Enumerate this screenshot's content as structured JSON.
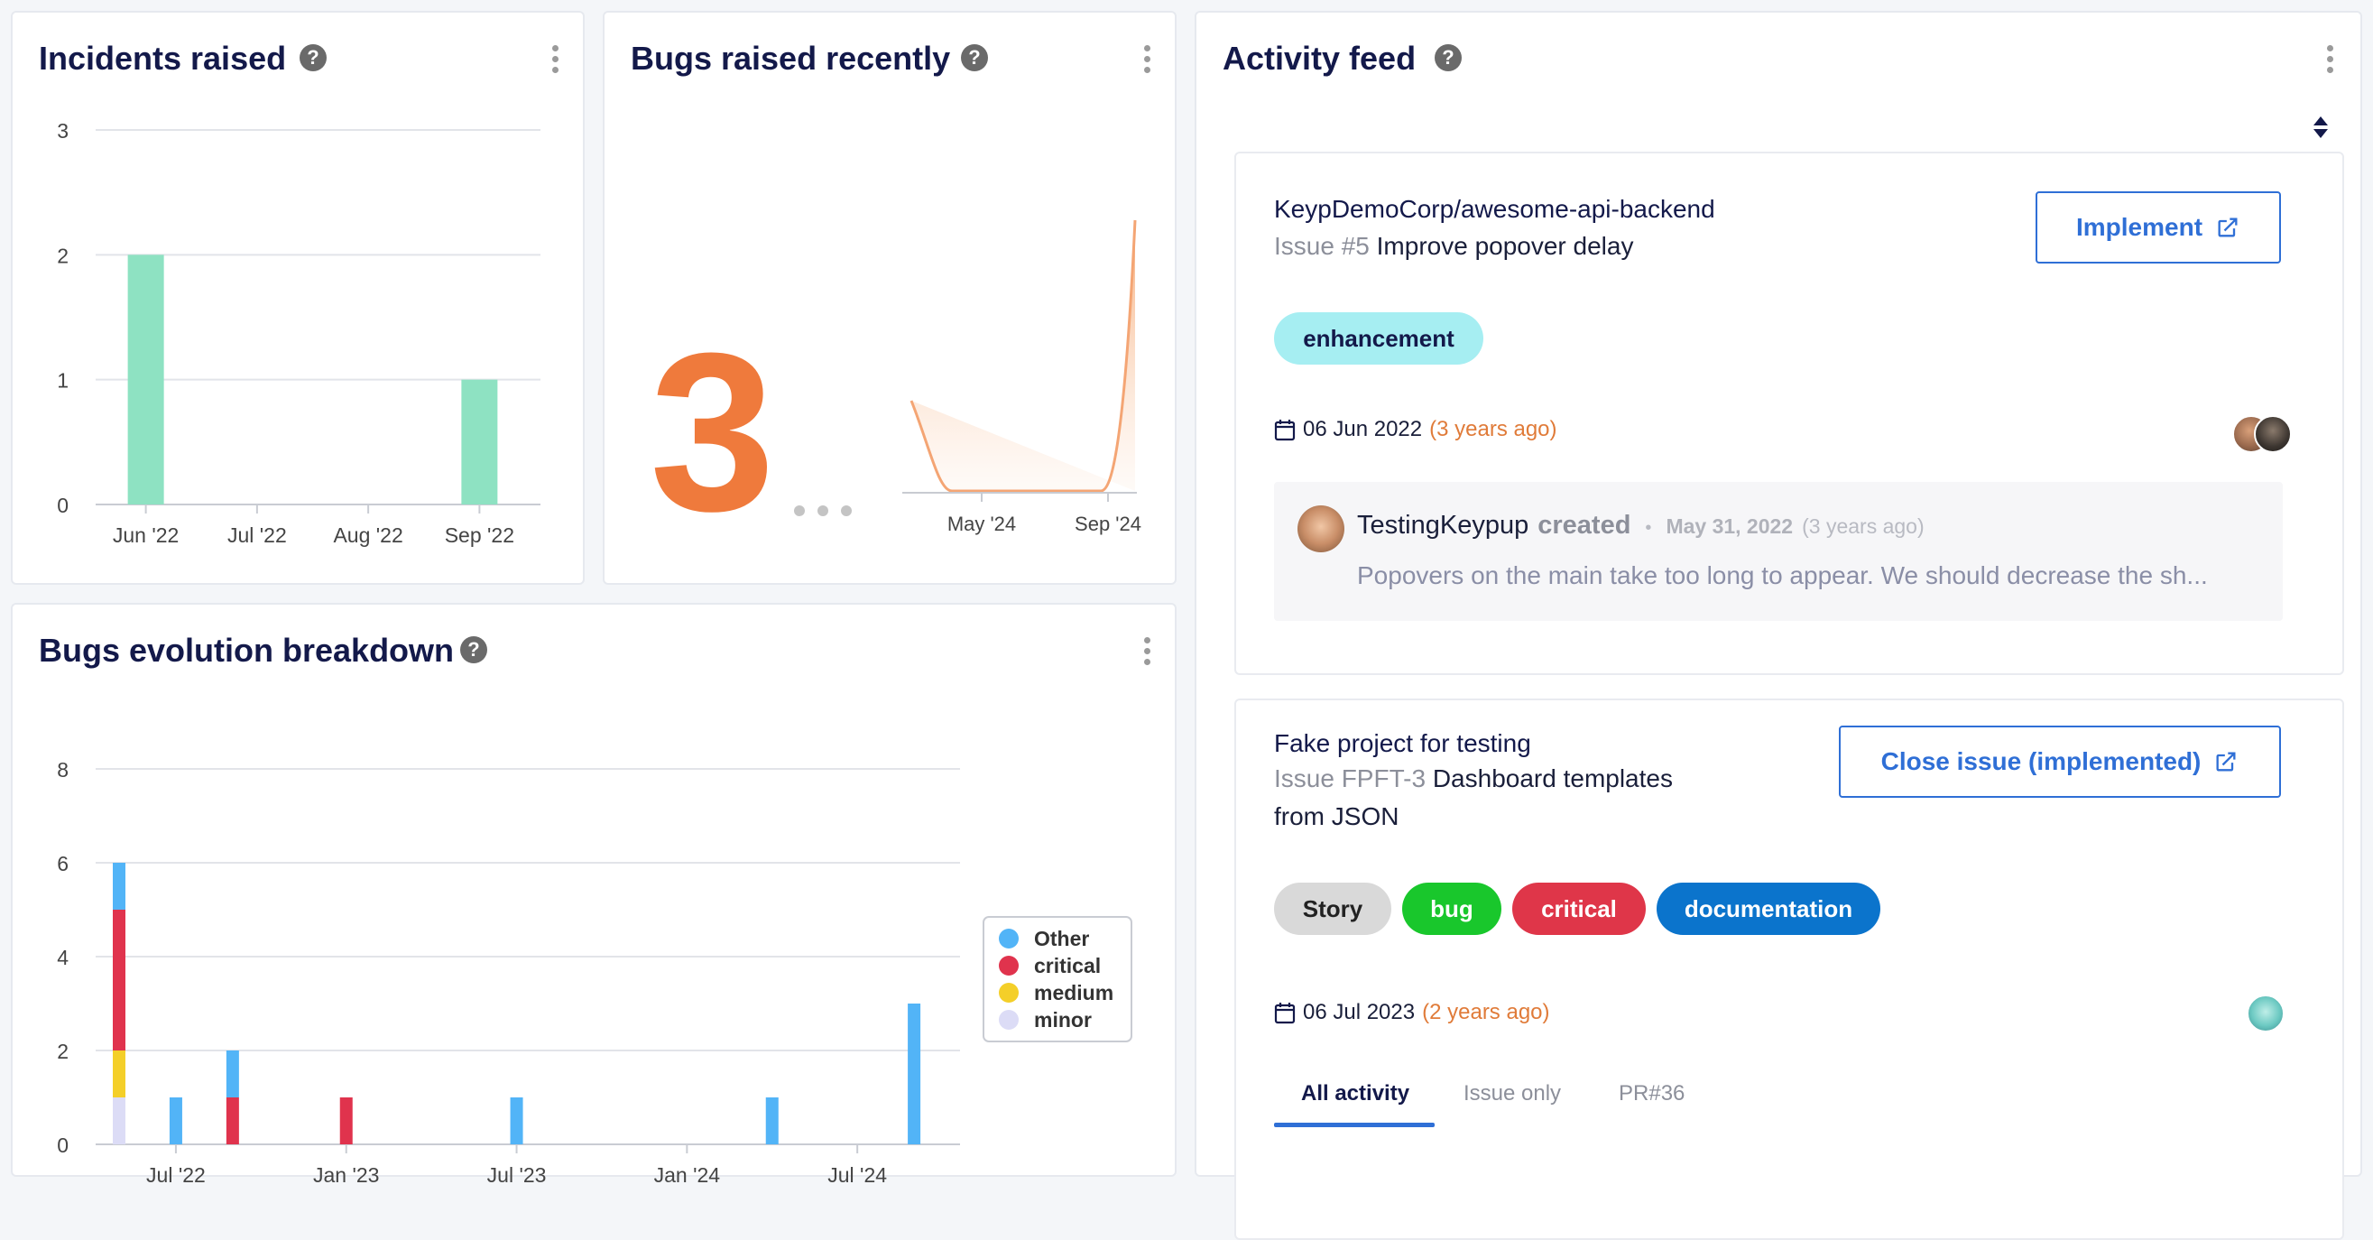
{
  "incidents": {
    "title": "Incidents raised",
    "help": "?",
    "chart_data": {
      "type": "bar",
      "title": "Incidents raised",
      "categories": [
        "Jun '22",
        "Jul '22",
        "Aug '22",
        "Sep '22"
      ],
      "values": [
        2,
        0,
        0,
        1
      ],
      "ylim": [
        0,
        3
      ],
      "yticks": [
        "0",
        "1",
        "2",
        "3"
      ],
      "color": "#8ee2c2"
    }
  },
  "bugs_recent": {
    "title": "Bugs raised recently",
    "help": "?",
    "big_number": "3",
    "big_color": "#ef7a3c",
    "chart_data": {
      "type": "area",
      "x_labels": [
        "May '24",
        "Sep '24"
      ],
      "color": "#f4a574"
    }
  },
  "bugs_evolution": {
    "title": "Bugs evolution breakdown",
    "help": "?",
    "chart_data": {
      "type": "bar",
      "stacked": true,
      "title": "Bugs evolution breakdown",
      "ylim": [
        0,
        8
      ],
      "yticks": [
        "0",
        "2",
        "4",
        "6",
        "8"
      ],
      "xticks": [
        "Jul '22",
        "Jan '23",
        "Jul '23",
        "Jan '24",
        "Jul '24"
      ],
      "series": [
        {
          "name": "Other",
          "color": "#52b4f7"
        },
        {
          "name": "critical",
          "color": "#e0334d"
        },
        {
          "name": "medium",
          "color": "#f4cf29"
        },
        {
          "name": "minor",
          "color": "#dcdcf6"
        }
      ],
      "bars": [
        {
          "period": "May '22",
          "minor": 1,
          "medium": 1,
          "critical": 3,
          "Other": 1
        },
        {
          "period": "Jul '22",
          "minor": 0,
          "medium": 0,
          "critical": 0,
          "Other": 1
        },
        {
          "period": "Sep '22",
          "minor": 0,
          "medium": 0,
          "critical": 1,
          "Other": 1
        },
        {
          "period": "Jan '23",
          "minor": 0,
          "medium": 0,
          "critical": 1,
          "Other": 0
        },
        {
          "period": "Jul '23",
          "minor": 0,
          "medium": 0,
          "critical": 0,
          "Other": 1
        },
        {
          "period": "Apr '24",
          "minor": 0,
          "medium": 0,
          "critical": 0,
          "Other": 1
        },
        {
          "period": "Sep '24",
          "minor": 0,
          "medium": 0,
          "critical": 0,
          "Other": 3
        }
      ],
      "legend": "right"
    }
  },
  "activity": {
    "title": "Activity feed",
    "help": "?",
    "sort_icon": "sort-icon",
    "items": [
      {
        "repo": "KeypDemoCorp/awesome-api-backend",
        "issue_num": "Issue #5",
        "issue_title": "Improve popover delay",
        "button": "Implement",
        "tags": [
          {
            "label": "enhancement",
            "bg": "#a6eef2",
            "fg": "#13194a"
          }
        ],
        "date": "06 Jun 2022",
        "ago": "(3 years ago)",
        "comment": {
          "author": "TestingKeypup",
          "action": "created",
          "date": "May 31, 2022",
          "ago": "(3 years ago)",
          "text": "Popovers on the main take too long to appear. We should decrease the sh..."
        }
      },
      {
        "repo": "Fake project for testing",
        "issue_num": "Issue FPFT-3",
        "issue_title": "Dashboard templates",
        "issue_title_2": "from JSON",
        "button": "Close issue (implemented)",
        "tags": [
          {
            "label": "Story",
            "bg": "#d9d9d9",
            "fg": "#222"
          },
          {
            "label": "bug",
            "bg": "#19c72c",
            "fg": "#fff"
          },
          {
            "label": "critical",
            "bg": "#df3649",
            "fg": "#fff"
          },
          {
            "label": "documentation",
            "bg": "#0b74cc",
            "fg": "#fff"
          }
        ],
        "date": "06 Jul 2023",
        "ago": "(2 years ago)",
        "tabs": [
          "All activity",
          "Issue only",
          "PR#36"
        ]
      }
    ]
  }
}
